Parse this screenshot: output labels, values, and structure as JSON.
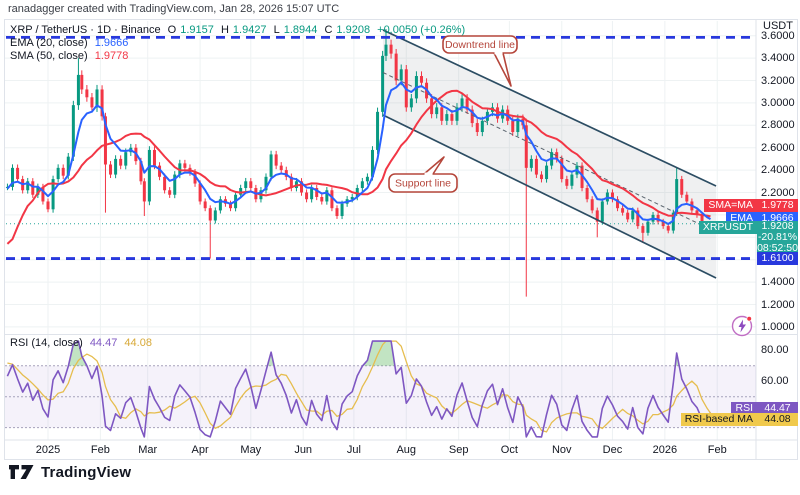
{
  "attribution": "ranadagger created with TradingView.com, Jan 28, 2026 15:07 UTC",
  "legend": {
    "title": "XRP / TetherUS · 1D · Binance",
    "o_label": "O",
    "o_value": "1.9157",
    "h_label": "H",
    "h_value": "1.9427",
    "l_label": "L",
    "l_value": "1.8944",
    "c_label": "C",
    "c_value": "1.9208",
    "change": "+0.0050 (+0.26%)"
  },
  "ema_legend": {
    "label": "EMA (20, close)",
    "value": "1.9666"
  },
  "sma_legend": {
    "label": "SMA (50, close)",
    "value": "1.9778"
  },
  "rsi_legend": {
    "label": "RSI (14, close)",
    "value": "44.47",
    "ma_value": "44.08"
  },
  "price_axis": {
    "unit": "USDT",
    "ticks": [
      {
        "label": "3.6000",
        "price": 3.6
      },
      {
        "label": "3.4000",
        "price": 3.4
      },
      {
        "label": "3.2000",
        "price": 3.2
      },
      {
        "label": "3.0000",
        "price": 3.0
      },
      {
        "label": "2.8000",
        "price": 2.8
      },
      {
        "label": "2.6000",
        "price": 2.6
      },
      {
        "label": "2.4000",
        "price": 2.4
      },
      {
        "label": "2.2000",
        "price": 2.2
      },
      {
        "label": "1.4000",
        "price": 1.4
      },
      {
        "label": "1.2000",
        "price": 1.2
      },
      {
        "label": "1.0000",
        "price": 1.0
      }
    ]
  },
  "time_axis": {
    "labels": [
      {
        "label": "2025",
        "t": 0
      },
      {
        "label": "Feb",
        "t": 31
      },
      {
        "label": "Mar",
        "t": 59
      },
      {
        "label": "Apr",
        "t": 90
      },
      {
        "label": "May",
        "t": 120
      },
      {
        "label": "Jun",
        "t": 151
      },
      {
        "label": "Jul",
        "t": 181
      },
      {
        "label": "Aug",
        "t": 212
      },
      {
        "label": "Sep",
        "t": 243
      },
      {
        "label": "Oct",
        "t": 273
      },
      {
        "label": "Nov",
        "t": 304
      },
      {
        "label": "Dec",
        "t": 334
      },
      {
        "label": "2026",
        "t": 365
      },
      {
        "label": "Feb",
        "t": 396
      }
    ]
  },
  "price_labels": {
    "sma": {
      "tag": "SMA=MA",
      "value": "1.9778"
    },
    "ema": {
      "tag": "EMA",
      "value": "1.9666"
    },
    "last": {
      "tag": "XRPUSDT",
      "value": "1.9208",
      "change": "-20.81%",
      "countdown": "08:52:50"
    },
    "level": {
      "value": "1.6100"
    },
    "rsi": {
      "tag": "RSI",
      "value": "44.47"
    },
    "rsi_ma": {
      "tag": "RSI-based MA",
      "value": "44.08"
    }
  },
  "annotations": {
    "downtrend": {
      "text": "Downtrend line"
    },
    "support": {
      "text": "Support line"
    }
  },
  "footer": {
    "brand": "TradingView"
  },
  "colors": {
    "up": "#089981",
    "down": "#f23645",
    "ema": "#2962ff",
    "sma": "#f23645",
    "channel": "#2c4d63",
    "channel_fill": "rgba(130,140,150,0.13)",
    "channel_mid": "#5a646e",
    "hline": "#2838dd",
    "last_line": "#26a69a",
    "rsi": "#7e57c2",
    "rsi_ma": "#e6bd4e",
    "rsi_band": "#a5a1bb",
    "rsi_fill": "rgba(126,87,194,0.08)",
    "overbought_fill": "rgba(102,187,106,0.4)",
    "callout": "#b5463b",
    "grid": "#eef2f3",
    "frame": "#dfe3ea",
    "text": "#131722"
  },
  "chart_data": {
    "type": "candlestick",
    "symbol": "XRPUSDT",
    "interval": "1D",
    "title": "XRP / TetherUS · 1D · Binance",
    "x_unit": "days_since_2025-01-01",
    "visible_price_range": [
      0.95,
      3.72
    ],
    "price_grid": [
      3.6,
      3.4,
      3.2,
      3.0,
      2.8,
      2.6,
      2.4,
      2.2,
      2.0,
      1.8,
      1.6,
      1.4,
      1.2,
      1.0
    ],
    "history": [
      [
        -80,
        0.55
      ],
      [
        -76,
        0.6
      ],
      [
        -72,
        0.95
      ],
      [
        -68,
        1.4
      ],
      [
        -64,
        1.15
      ],
      [
        -60,
        1.35
      ],
      [
        -56,
        1.55
      ],
      [
        -52,
        2.25
      ],
      [
        -48,
        2.5
      ],
      [
        -44,
        2.28
      ],
      [
        -40,
        2.22
      ],
      [
        -36,
        2.42
      ],
      [
        -32,
        2.3
      ],
      [
        -28,
        2.35
      ]
    ],
    "candles": [
      [
        -24,
        2.25
      ],
      [
        -21,
        2.42
      ],
      [
        -18,
        2.32
      ],
      [
        -15,
        2.22
      ],
      [
        -12,
        2.3
      ],
      [
        -9,
        2.18
      ],
      [
        -6,
        2.25
      ],
      [
        -3,
        2.12
      ],
      [
        0,
        2.05
      ],
      [
        3,
        2.32
      ],
      [
        6,
        2.42
      ],
      [
        9,
        2.35
      ],
      [
        12,
        2.52
      ],
      [
        15,
        2.98
      ],
      [
        18,
        3.25
      ],
      [
        20,
        3.12
      ],
      [
        23,
        3.05
      ],
      [
        26,
        2.96
      ],
      [
        29,
        3.12
      ],
      [
        32,
        2.88
      ],
      [
        34,
        2.45
      ],
      [
        37,
        2.36
      ],
      [
        40,
        2.5
      ],
      [
        43,
        2.44
      ],
      [
        46,
        2.56
      ],
      [
        49,
        2.6
      ],
      [
        52,
        2.48
      ],
      [
        55,
        2.3
      ],
      [
        57,
        2.12
      ],
      [
        60,
        2.58
      ],
      [
        63,
        2.44
      ],
      [
        66,
        2.34
      ],
      [
        69,
        2.22
      ],
      [
        72,
        2.18
      ],
      [
        75,
        2.36
      ],
      [
        78,
        2.46
      ],
      [
        81,
        2.42
      ],
      [
        84,
        2.38
      ],
      [
        87,
        2.28
      ],
      [
        90,
        2.12
      ],
      [
        93,
        2.06
      ],
      [
        96,
        1.95
      ],
      [
        99,
        2.04
      ],
      [
        102,
        2.14
      ],
      [
        105,
        2.1
      ],
      [
        108,
        2.06
      ],
      [
        111,
        2.18
      ],
      [
        114,
        2.24
      ],
      [
        117,
        2.3
      ],
      [
        120,
        2.24
      ],
      [
        123,
        2.14
      ],
      [
        126,
        2.22
      ],
      [
        129,
        2.34
      ],
      [
        132,
        2.54
      ],
      [
        135,
        2.44
      ],
      [
        138,
        2.4
      ],
      [
        141,
        2.34
      ],
      [
        144,
        2.24
      ],
      [
        147,
        2.3
      ],
      [
        150,
        2.2
      ],
      [
        153,
        2.14
      ],
      [
        156,
        2.24
      ],
      [
        159,
        2.16
      ],
      [
        162,
        2.12
      ],
      [
        165,
        2.22
      ],
      [
        168,
        2.06
      ],
      [
        171,
        1.99
      ],
      [
        174,
        2.1
      ],
      [
        177,
        2.14
      ],
      [
        180,
        2.16
      ],
      [
        183,
        2.24
      ],
      [
        186,
        2.3
      ],
      [
        189,
        2.34
      ],
      [
        192,
        2.58
      ],
      [
        195,
        2.92
      ],
      [
        198,
        3.42
      ],
      [
        200,
        3.52
      ],
      [
        203,
        3.44
      ],
      [
        206,
        3.2
      ],
      [
        209,
        3.3
      ],
      [
        212,
        2.96
      ],
      [
        215,
        3.04
      ],
      [
        218,
        3.24
      ],
      [
        221,
        3.18
      ],
      [
        224,
        3.04
      ],
      [
        227,
        2.9
      ],
      [
        230,
        2.96
      ],
      [
        233,
        2.84
      ],
      [
        236,
        2.9
      ],
      [
        239,
        2.84
      ],
      [
        242,
        2.96
      ],
      [
        245,
        3.04
      ],
      [
        248,
        2.94
      ],
      [
        251,
        2.82
      ],
      [
        254,
        2.74
      ],
      [
        257,
        2.84
      ],
      [
        260,
        2.92
      ],
      [
        263,
        2.96
      ],
      [
        266,
        2.86
      ],
      [
        269,
        2.94
      ],
      [
        272,
        2.84
      ],
      [
        275,
        2.74
      ],
      [
        278,
        2.86
      ],
      [
        281,
        2.8
      ],
      [
        283,
        2.42
      ],
      [
        286,
        2.5
      ],
      [
        289,
        2.36
      ],
      [
        292,
        2.32
      ],
      [
        295,
        2.44
      ],
      [
        298,
        2.56
      ],
      [
        301,
        2.5
      ],
      [
        304,
        2.32
      ],
      [
        307,
        2.26
      ],
      [
        310,
        2.36
      ],
      [
        313,
        2.44
      ],
      [
        316,
        2.24
      ],
      [
        319,
        2.14
      ],
      [
        322,
        2.04
      ],
      [
        325,
        1.94
      ],
      [
        328,
        2.12
      ],
      [
        331,
        2.2
      ],
      [
        334,
        2.14
      ],
      [
        337,
        2.06
      ],
      [
        340,
        2.02
      ],
      [
        343,
        1.96
      ],
      [
        346,
        2.04
      ],
      [
        349,
        1.9
      ],
      [
        352,
        1.84
      ],
      [
        355,
        1.94
      ],
      [
        358,
        2.0
      ],
      [
        361,
        1.94
      ],
      [
        364,
        1.9
      ],
      [
        367,
        1.86
      ],
      [
        370,
        2.02
      ],
      [
        372,
        2.32
      ],
      [
        375,
        2.18
      ],
      [
        378,
        2.12
      ],
      [
        381,
        2.04
      ],
      [
        384,
        2.0
      ],
      [
        387,
        1.92
      ],
      [
        390,
        1.88
      ],
      [
        392,
        1.9208
      ]
    ],
    "wick_overrides": [
      [
        18,
        3.4,
        null
      ],
      [
        34,
        null,
        2.02
      ],
      [
        57,
        null,
        1.99
      ],
      [
        96,
        null,
        1.61
      ],
      [
        200,
        3.66,
        null
      ],
      [
        283,
        2.86,
        1.27
      ],
      [
        325,
        null,
        1.8
      ],
      [
        352,
        null,
        1.75
      ],
      [
        372,
        2.42,
        null
      ]
    ],
    "indicators": {
      "ema": {
        "period": 20,
        "current": 1.9666,
        "sample_period": 6
      },
      "sma": {
        "period": 50,
        "current": 1.9778,
        "sample_period": 16
      },
      "rsi": {
        "period": 14,
        "current": 44.47,
        "ma_current": 44.08,
        "sample_period": 5,
        "ma_sample_period": 5,
        "bands": [
          70,
          50,
          30
        ],
        "scale_ticks": [
          {
            "label": "80.00",
            "v": 80
          },
          {
            "label": "60.00",
            "v": 60
          }
        ]
      }
    },
    "drawings": {
      "channel": {
        "upper": [
          [
            198.2,
            3.651
          ],
          [
            395.3,
            2.258
          ]
        ],
        "lower": [
          [
            198.2,
            2.892
          ],
          [
            395.3,
            1.437
          ]
        ],
        "midline_dashed": true
      },
      "hlines": [
        {
          "price": 3.585,
          "style": "dashed"
        },
        {
          "price": 1.61,
          "style": "dashed",
          "label": "1.6100"
        }
      ],
      "last_price_line": 1.9208
    }
  }
}
